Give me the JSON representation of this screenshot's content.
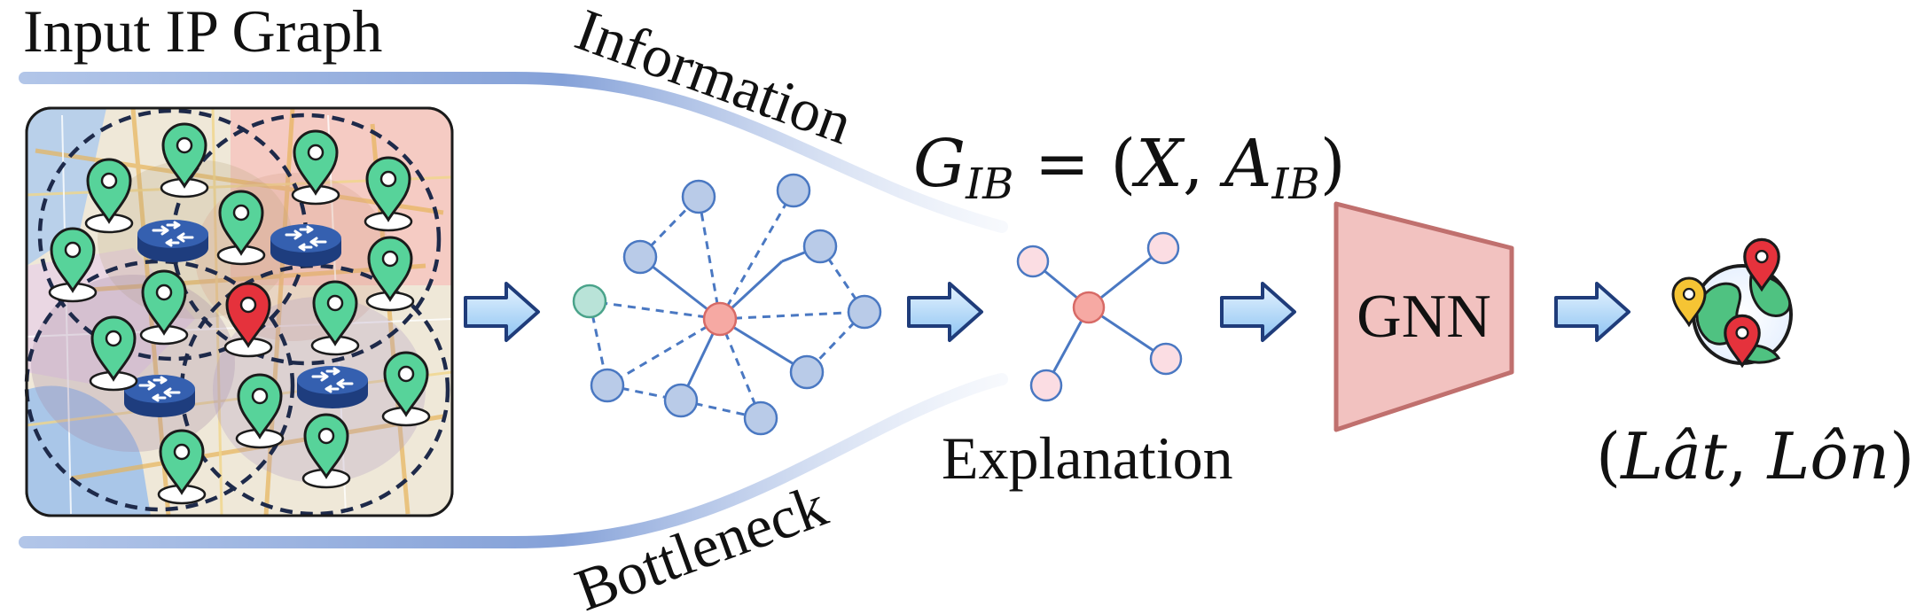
{
  "labels": {
    "input_graph": "Input IP Graph",
    "information": "Information",
    "bottleneck": "Bottleneck",
    "explanation": "Explanation",
    "gnn": "GNN"
  },
  "formula": {
    "lhs_G": "G",
    "lhs_sub": "IB",
    "equals": " = (",
    "X": "X",
    "comma": ", ",
    "A": "A",
    "A_sub": "IB",
    "close": ")"
  },
  "output": {
    "open": "(",
    "lat": "Lât",
    "comma": ", ",
    "lon": "Lôn",
    "close": ")"
  },
  "colors": {
    "funnel": "#7f9ed6",
    "node_blue": "#b9cbe8",
    "node_stroke": "#5b82c8",
    "node_pink": "#f6a9a3",
    "node_light_pink": "#fbdde3",
    "node_teal": "#b9e3d8",
    "gnn_fill": "#f2c2c0",
    "gnn_stroke": "#c0706e",
    "pin_green": "#57d39a",
    "pin_red": "#e5323c",
    "router": "#2c4f9a",
    "arrow_fill": "#bfe0fb",
    "arrow_stroke": "#1f3c7a"
  },
  "icons": {
    "router": "router-icon",
    "pin": "location-pin-icon",
    "arrow": "right-arrow-icon",
    "globe": "globe-with-pins-icon"
  }
}
